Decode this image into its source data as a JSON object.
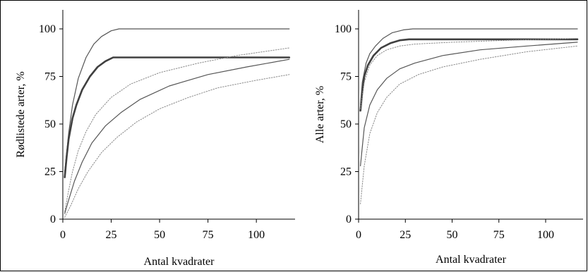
{
  "chart_data": [
    {
      "type": "line",
      "title": "",
      "xlabel": "Antal kvadrater",
      "ylabel": "Rødlistede arter, %",
      "xlim": [
        0,
        120
      ],
      "ylim": [
        0,
        110
      ],
      "xticks": [
        0,
        25,
        50,
        75,
        100
      ],
      "yticks": [
        0,
        25,
        50,
        75,
        100
      ],
      "grid": false,
      "series": [
        {
          "style": "upper-envelope",
          "color": "#555555",
          "points": [
            [
              1,
              25
            ],
            [
              3,
              45
            ],
            [
              5,
              60
            ],
            [
              8,
              74
            ],
            [
              12,
              85
            ],
            [
              16,
              92
            ],
            [
              20,
              96
            ],
            [
              25,
              99
            ],
            [
              29,
              100
            ],
            [
              117,
              100
            ]
          ]
        },
        {
          "style": "mean-bold",
          "color": "#404040",
          "points": [
            [
              1,
              22
            ],
            [
              2,
              33
            ],
            [
              3,
              42
            ],
            [
              5,
              53
            ],
            [
              7,
              60
            ],
            [
              10,
              68
            ],
            [
              14,
              75
            ],
            [
              18,
              80
            ],
            [
              22,
              83
            ],
            [
              26,
              85
            ],
            [
              117,
              85
            ]
          ]
        },
        {
          "style": "upper-dotted",
          "color": "#888888",
          "points": [
            [
              1,
              4
            ],
            [
              3,
              15
            ],
            [
              5,
              25
            ],
            [
              8,
              36
            ],
            [
              12,
              46
            ],
            [
              17,
              55
            ],
            [
              25,
              64
            ],
            [
              35,
              71
            ],
            [
              50,
              77
            ],
            [
              70,
              82
            ],
            [
              90,
              86
            ],
            [
              117,
              90
            ]
          ]
        },
        {
          "style": "lower-solid",
          "color": "#555555",
          "points": [
            [
              1,
              3
            ],
            [
              3,
              10
            ],
            [
              6,
              20
            ],
            [
              10,
              30
            ],
            [
              15,
              40
            ],
            [
              22,
              49
            ],
            [
              30,
              56
            ],
            [
              40,
              63
            ],
            [
              55,
              70
            ],
            [
              75,
              76
            ],
            [
              95,
              80
            ],
            [
              117,
              84
            ]
          ]
        },
        {
          "style": "lower-dotted",
          "color": "#888888",
          "points": [
            [
              1,
              1
            ],
            [
              4,
              7
            ],
            [
              8,
              16
            ],
            [
              13,
              25
            ],
            [
              20,
              35
            ],
            [
              28,
              43
            ],
            [
              38,
              51
            ],
            [
              50,
              58
            ],
            [
              65,
              64
            ],
            [
              80,
              69
            ],
            [
              100,
              73
            ],
            [
              117,
              76
            ]
          ]
        }
      ]
    },
    {
      "type": "line",
      "title": "",
      "xlabel": "Antal kvadrater",
      "ylabel": "Alle arter, %",
      "xlim": [
        0,
        120
      ],
      "ylim": [
        0,
        110
      ],
      "xticks": [
        0,
        25,
        50,
        75,
        100
      ],
      "yticks": [
        0,
        25,
        50,
        75,
        100
      ],
      "grid": false,
      "series": [
        {
          "style": "upper-envelope",
          "color": "#555555",
          "points": [
            [
              1,
              60
            ],
            [
              2,
              72
            ],
            [
              4,
              82
            ],
            [
              6,
              87
            ],
            [
              9,
              91
            ],
            [
              13,
              95
            ],
            [
              18,
              98
            ],
            [
              24,
              99.5
            ],
            [
              29,
              100
            ],
            [
              117,
              100
            ]
          ]
        },
        {
          "style": "mean-bold",
          "color": "#404040",
          "points": [
            [
              1,
              57
            ],
            [
              2,
              67
            ],
            [
              3,
              75
            ],
            [
              5,
              81
            ],
            [
              8,
              86
            ],
            [
              12,
              90
            ],
            [
              17,
              92.5
            ],
            [
              22,
              94
            ],
            [
              27,
              94.5
            ],
            [
              117,
              94.5
            ]
          ]
        },
        {
          "style": "upper-dotted",
          "color": "#888888",
          "points": [
            [
              1,
              58
            ],
            [
              3,
              72
            ],
            [
              6,
              81
            ],
            [
              10,
              86
            ],
            [
              15,
              89
            ],
            [
              22,
              91
            ],
            [
              30,
              92
            ],
            [
              50,
              93
            ],
            [
              80,
              94
            ],
            [
              117,
              95
            ]
          ]
        },
        {
          "style": "lower-solid",
          "color": "#555555",
          "points": [
            [
              1,
              28
            ],
            [
              3,
              48
            ],
            [
              6,
              60
            ],
            [
              10,
              68
            ],
            [
              15,
              74
            ],
            [
              22,
              79
            ],
            [
              30,
              82
            ],
            [
              45,
              86
            ],
            [
              65,
              89
            ],
            [
              90,
              91
            ],
            [
              117,
              93
            ]
          ]
        },
        {
          "style": "lower-dotted",
          "color": "#888888",
          "points": [
            [
              1,
              8
            ],
            [
              3,
              28
            ],
            [
              6,
              45
            ],
            [
              10,
              56
            ],
            [
              15,
              64
            ],
            [
              22,
              71
            ],
            [
              32,
              76
            ],
            [
              45,
              80
            ],
            [
              65,
              84
            ],
            [
              90,
              88
            ],
            [
              117,
              91
            ]
          ]
        }
      ]
    }
  ]
}
